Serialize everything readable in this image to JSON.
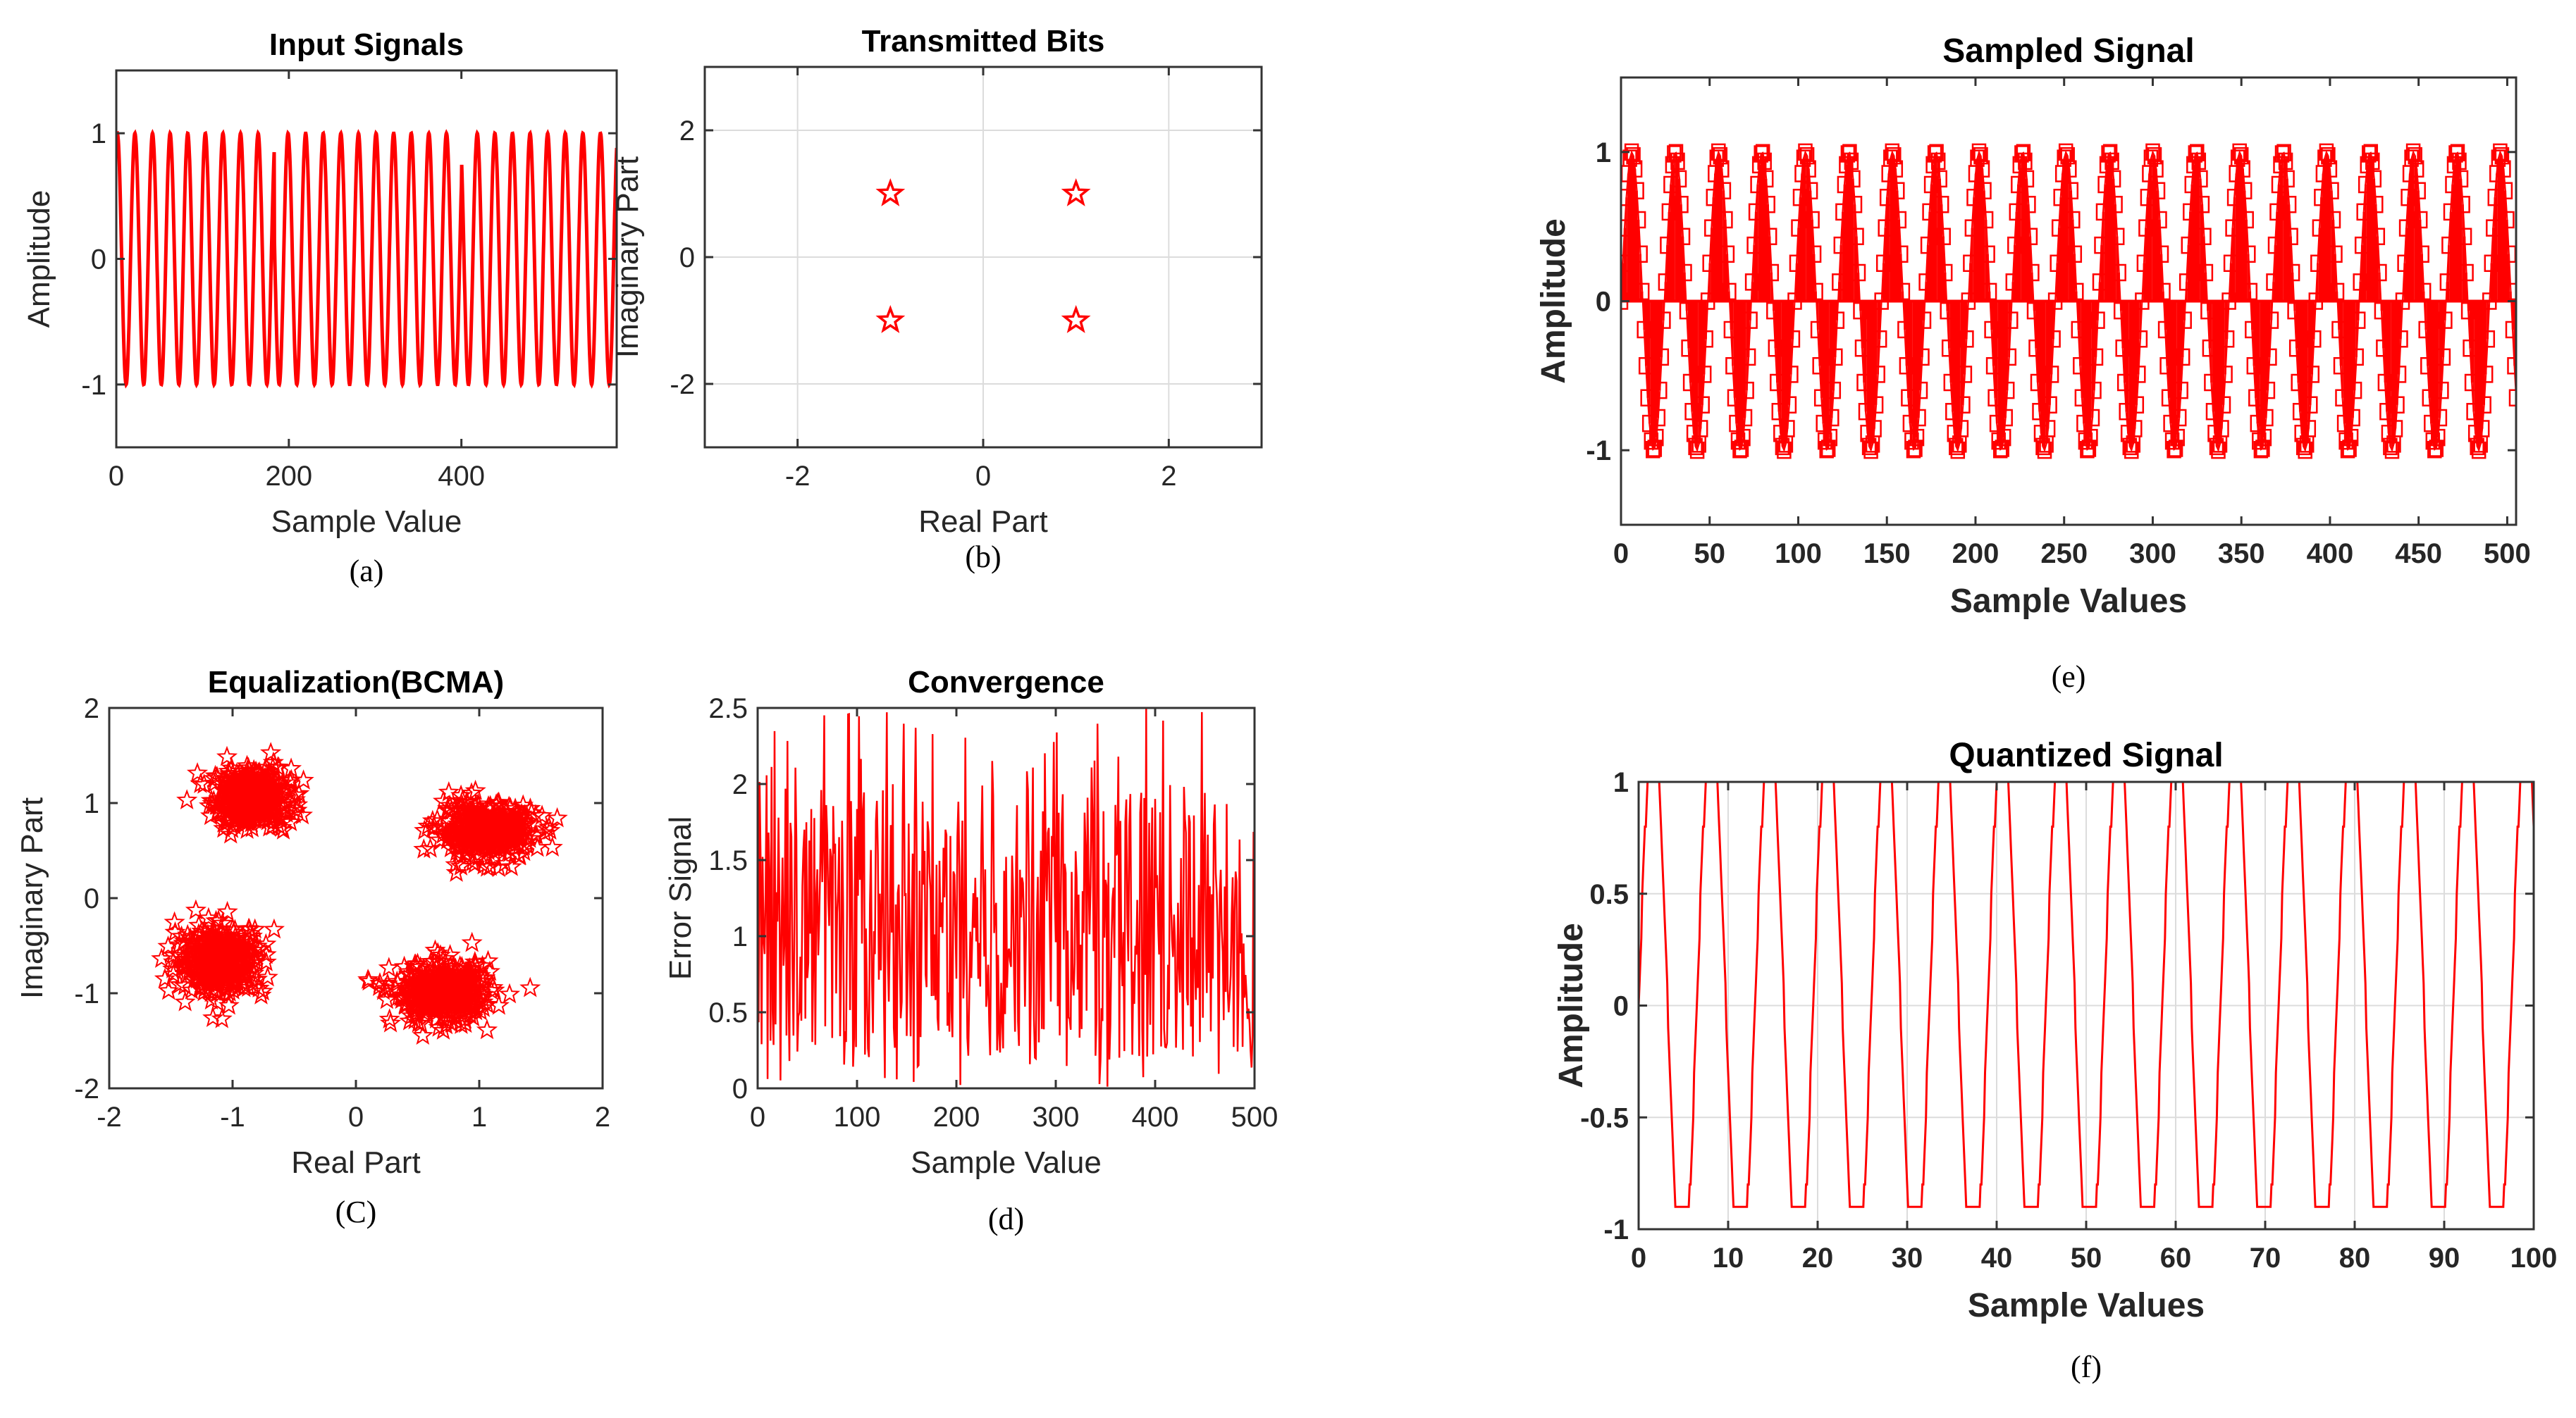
{
  "colors": {
    "signal": "#ff0000",
    "axis": "#333333",
    "grid": "#dcdcdc",
    "text": "#262626"
  },
  "chart_data": [
    {
      "id": "a",
      "type": "line",
      "title": "Input Signals",
      "xlabel": "Sample Value",
      "ylabel": "Amplitude",
      "caption": "(a)",
      "xlim": [
        0,
        580
      ],
      "ylim": [
        -1.5,
        1.5
      ],
      "xticks": [
        0,
        200,
        400
      ],
      "yticks": [
        -1,
        0,
        1
      ],
      "xtick_labels": [
        "0",
        "200",
        "400"
      ],
      "ytick_labels": [
        "-1",
        "0",
        "1"
      ],
      "grid": false,
      "series": [
        {
          "name": "input",
          "period": 20.4,
          "amplitude": 1,
          "phase_jumps_at": [
            183,
            400
          ]
        }
      ]
    },
    {
      "id": "b",
      "type": "scatter",
      "title": "Transmitted Bits",
      "xlabel": "Real Part",
      "ylabel": "Imaginary Part",
      "caption": "(b)",
      "xlim": [
        -3,
        3
      ],
      "ylim": [
        -3,
        3
      ],
      "xticks": [
        -2,
        0,
        2
      ],
      "yticks": [
        -2,
        0,
        2
      ],
      "xtick_labels": [
        "-2",
        "0",
        "2"
      ],
      "ytick_labels": [
        "-2",
        "0",
        "2"
      ],
      "grid": true,
      "marker": "star",
      "points": [
        [
          -1,
          1
        ],
        [
          1,
          1
        ],
        [
          -1,
          -1
        ],
        [
          1,
          -1
        ]
      ]
    },
    {
      "id": "c",
      "type": "scatter",
      "title": "Equalization(BCMA)",
      "xlabel": "Real Part",
      "ylabel": "Imaginary Part",
      "caption": "(C)",
      "xlim": [
        -2,
        2
      ],
      "ylim": [
        -2,
        2
      ],
      "xticks": [
        -2,
        -1,
        0,
        1,
        2
      ],
      "yticks": [
        -2,
        -1,
        0,
        1,
        2
      ],
      "xtick_labels": [
        "-2",
        "-1",
        "0",
        "1",
        "2"
      ],
      "ytick_labels": [
        "-2",
        "-1",
        "0",
        "1",
        "2"
      ],
      "grid": false,
      "marker": "star",
      "clusters": [
        {
          "center": [
            -0.85,
            1.05
          ],
          "spread": [
            0.2,
            0.2
          ]
        },
        {
          "center": [
            1.05,
            0.7
          ],
          "spread": [
            0.25,
            0.18
          ]
        },
        {
          "center": [
            -1.1,
            -0.65
          ],
          "spread": [
            0.22,
            0.23
          ]
        },
        {
          "center": [
            0.7,
            -1.0
          ],
          "spread": [
            0.25,
            0.2
          ]
        }
      ],
      "points_per_cluster": 350
    },
    {
      "id": "d",
      "type": "line",
      "title": "Convergence",
      "xlabel": "Sample Value",
      "ylabel": "Error Signal",
      "caption": "(d)",
      "xlim": [
        0,
        500
      ],
      "ylim": [
        0,
        2.5
      ],
      "xticks": [
        0,
        100,
        200,
        300,
        400,
        500
      ],
      "yticks": [
        0,
        0.5,
        1,
        1.5,
        2,
        2.5
      ],
      "xtick_labels": [
        "0",
        "100",
        "200",
        "300",
        "400",
        "500"
      ],
      "ytick_labels": [
        "0",
        "0.5",
        "1",
        "1.5",
        "2",
        "2.5"
      ],
      "grid": false,
      "series": [
        {
          "name": "error",
          "samples": 500,
          "min": 0,
          "max": 2.5,
          "typical_range": [
            0.2,
            2.0
          ]
        }
      ]
    },
    {
      "id": "e",
      "type": "line",
      "title": "Sampled Signal",
      "xlabel": "Sample Values",
      "ylabel": "Amplitude",
      "caption": "(e)",
      "xlim": [
        0,
        505
      ],
      "ylim": [
        -1.5,
        1.5
      ],
      "xticks": [
        0,
        50,
        100,
        150,
        200,
        250,
        300,
        350,
        400,
        450,
        500
      ],
      "yticks": [
        -1,
        0,
        1
      ],
      "xtick_labels": [
        "0",
        "50",
        "100",
        "150",
        "200",
        "250",
        "300",
        "350",
        "400",
        "450",
        "500"
      ],
      "ytick_labels": [
        "-1",
        "0",
        "1"
      ],
      "grid": false,
      "marker": "square",
      "stem": true,
      "series": [
        {
          "name": "sampled",
          "period": 24.5,
          "amplitude": 1,
          "samples": 505
        }
      ]
    },
    {
      "id": "f",
      "type": "line",
      "title": "Quantized Signal",
      "xlabel": "Sample Values",
      "ylabel": "Amplitude",
      "caption": "(f)",
      "xlim": [
        0,
        100
      ],
      "ylim": [
        -1,
        1
      ],
      "xticks": [
        0,
        10,
        20,
        30,
        40,
        50,
        60,
        70,
        80,
        90,
        100
      ],
      "yticks": [
        -1,
        -0.5,
        0,
        0.5,
        1
      ],
      "xtick_labels": [
        "0",
        "10",
        "20",
        "30",
        "40",
        "50",
        "60",
        "70",
        "80",
        "90",
        "100"
      ],
      "ytick_labels": [
        "-1",
        "-0.5",
        "0",
        "0.5",
        "1"
      ],
      "grid": true,
      "series": [
        {
          "name": "quantized",
          "period": 6.5,
          "levels": [
            -0.9,
            1.0
          ]
        }
      ]
    }
  ]
}
